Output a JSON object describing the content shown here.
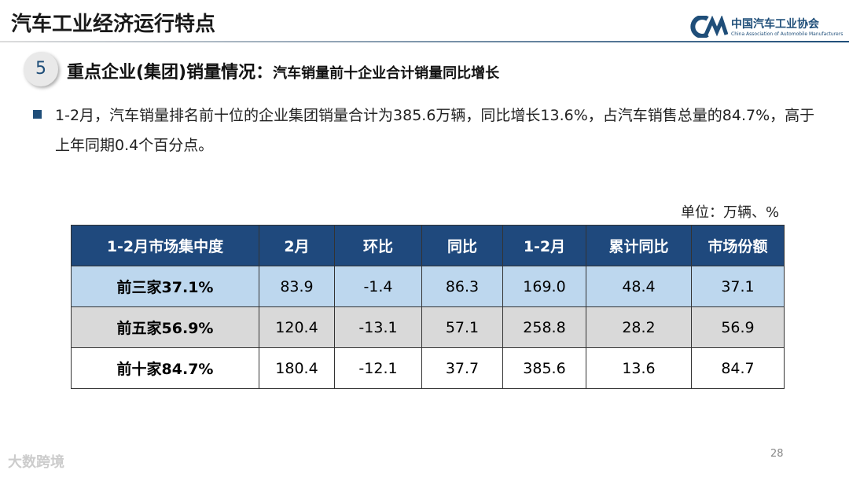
{
  "header": {
    "title": "汽车工业经济运行特点",
    "logo_cn": "中国汽车工业协会",
    "logo_en": "China Association of Automobile Manufacturers"
  },
  "section": {
    "number": "5",
    "heading": "重点企业(集团)销量情况：",
    "subheading": "汽车销量前十企业合计销量同比增长"
  },
  "bullet": "1-2月，汽车销量排名前十位的企业集团销量合计为385.6万辆，同比增长13.6%，占汽车销售总量的84.7%，高于上年同期0.4个百分点。",
  "unit": "单位：万辆、%",
  "table": {
    "header": [
      "1-2月市场集中度",
      "2月",
      "环比",
      "同比",
      "1-2月",
      "累计同比",
      "市场份额"
    ],
    "rows": [
      [
        "前三家37.1%",
        "83.9",
        "-1.4",
        "86.3",
        "169.0",
        "48.4",
        "37.1"
      ],
      [
        "前五家56.9%",
        "120.4",
        "-13.1",
        "57.1",
        "258.8",
        "28.2",
        "56.9"
      ],
      [
        "前十家84.7%",
        "180.4",
        "-12.1",
        "37.7",
        "385.6",
        "13.6",
        "84.7"
      ]
    ]
  },
  "page_number": "28",
  "watermark": "大数跨境"
}
